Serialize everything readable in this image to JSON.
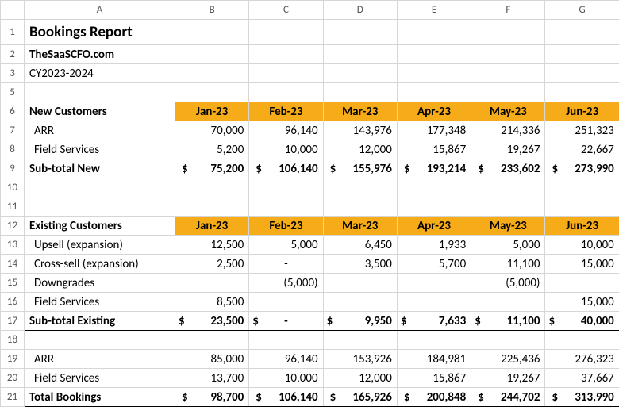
{
  "header": {
    "cols": [
      "A",
      "B",
      "C",
      "D",
      "E",
      "F",
      "G"
    ],
    "rows": [
      "1",
      "2",
      "3",
      "5",
      "6",
      "7",
      "8",
      "9",
      "10",
      "11",
      "12",
      "13",
      "14",
      "15",
      "16",
      "17",
      "18",
      "19",
      "20",
      "21"
    ]
  },
  "title": "Bookings Report",
  "subtitle": "TheSaaSCFO.com",
  "period": "CY2023-2024",
  "months": [
    "Jan-23",
    "Feb-23",
    "Mar-23",
    "Apr-23",
    "May-23",
    "Jun-23"
  ],
  "section_new": "New Customers",
  "arr_label": "ARR",
  "fs_label": "Field Services",
  "subtotal_new_label": "Sub-total New",
  "new_arr": [
    "70,000",
    "96,140",
    "143,976",
    "177,348",
    "214,336",
    "251,323"
  ],
  "new_fs": [
    "5,200",
    "10,000",
    "12,000",
    "15,867",
    "19,267",
    "22,667"
  ],
  "subtotal_new": [
    "75,200",
    "106,140",
    "155,976",
    "193,214",
    "233,602",
    "273,990"
  ],
  "section_existing": "Existing Customers",
  "upsell_label": "Upsell (expansion)",
  "cross_label": "Cross-sell (expansion)",
  "downgrades_label": "Downgrades",
  "subtotal_existing_label": "Sub-total Existing",
  "upsell": [
    "12,500",
    "5,000",
    "6,450",
    "1,933",
    "5,000",
    "10,000"
  ],
  "cross": [
    "2,500",
    "-",
    "3,500",
    "5,700",
    "11,100",
    "15,000"
  ],
  "downgrades": [
    "",
    "(5,000)",
    "",
    "",
    "(5,000)",
    ""
  ],
  "existing_fs": [
    "8,500",
    "",
    "",
    "",
    "",
    "15,000"
  ],
  "subtotal_existing": [
    "23,500",
    "-",
    "9,950",
    "7,633",
    "11,100",
    "40,000"
  ],
  "bottom_arr": [
    "85,000",
    "96,140",
    "153,926",
    "184,981",
    "225,436",
    "276,323"
  ],
  "bottom_fs": [
    "13,700",
    "10,000",
    "12,000",
    "15,867",
    "19,267",
    "37,667"
  ],
  "total_label": "Total Bookings",
  "total": [
    "98,700",
    "106,140",
    "165,926",
    "200,848",
    "244,702",
    "313,990"
  ],
  "colors": {
    "grid": "#d6d6d6",
    "month_bg": "#f6ac18",
    "ink": "#000000"
  }
}
